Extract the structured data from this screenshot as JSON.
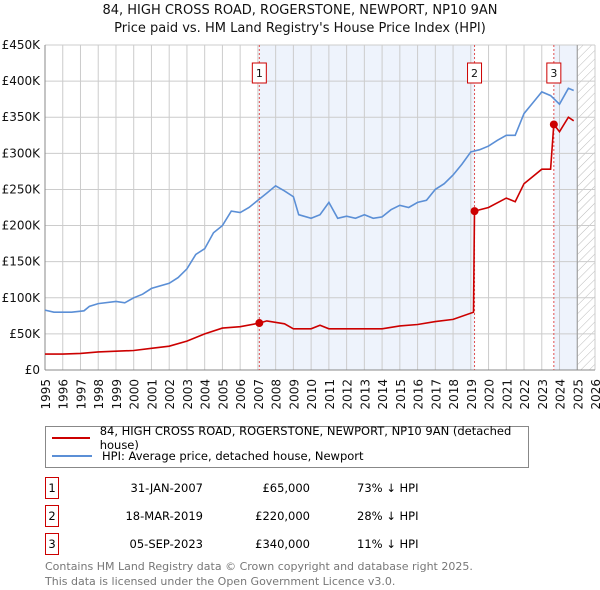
{
  "chart_data": {
    "type": "line",
    "title": "84, HIGH CROSS ROAD, ROGERSTONE, NEWPORT, NP10 9AN",
    "subtitle": "Price paid vs. HM Land Registry's House Price Index (HPI)",
    "xlim": [
      1995,
      2026
    ],
    "ylim": [
      0,
      450000
    ],
    "x_ticks": [
      "1995",
      "1996",
      "1997",
      "1998",
      "1999",
      "2000",
      "2001",
      "2002",
      "2003",
      "2004",
      "2005",
      "2006",
      "2007",
      "2008",
      "2009",
      "2010",
      "2011",
      "2012",
      "2013",
      "2014",
      "2015",
      "2016",
      "2017",
      "2018",
      "2019",
      "2020",
      "2021",
      "2022",
      "2023",
      "2024",
      "2025",
      "2026"
    ],
    "y_ticks": [
      {
        "v": 0,
        "label": "£0"
      },
      {
        "v": 50000,
        "label": "£50K"
      },
      {
        "v": 100000,
        "label": "£100K"
      },
      {
        "v": 150000,
        "label": "£150K"
      },
      {
        "v": 200000,
        "label": "£200K"
      },
      {
        "v": 250000,
        "label": "£250K"
      },
      {
        "v": 300000,
        "label": "£300K"
      },
      {
        "v": 350000,
        "label": "£350K"
      },
      {
        "v": 400000,
        "label": "£400K"
      },
      {
        "v": 450000,
        "label": "£450K"
      }
    ],
    "grid": true,
    "shaded_ranges": [
      [
        2007.08,
        2019.21
      ],
      [
        2023.68,
        2025.0
      ]
    ],
    "forecast_hatch_from": 2025.0,
    "series": [
      {
        "name": "84, HIGH CROSS ROAD, ROGERSTONE, NEWPORT, NP10 9AN (detached house)",
        "color": "#cc0000",
        "x": [
          1995,
          1996,
          1997,
          1998,
          1999,
          2000,
          2001,
          2002,
          2003,
          2004,
          2005,
          2006,
          2007.08,
          2007.5,
          2008.5,
          2009,
          2010,
          2010.5,
          2011,
          2012,
          2013,
          2014,
          2015,
          2016,
          2017,
          2018,
          2019.15,
          2019.21,
          2020,
          2021,
          2021.5,
          2022,
          2023,
          2023.5,
          2023.68,
          2024,
          2024.5,
          2024.8
        ],
        "y": [
          22000,
          22000,
          23000,
          25000,
          26000,
          27000,
          30000,
          33000,
          40000,
          50000,
          58000,
          60000,
          65000,
          68000,
          64000,
          57000,
          57000,
          62000,
          57000,
          57000,
          57000,
          57000,
          61000,
          63000,
          67000,
          70000,
          80000,
          220000,
          225000,
          238000,
          233000,
          258000,
          278000,
          278000,
          340000,
          330000,
          350000,
          345000
        ]
      },
      {
        "name": "HPI: Average price, detached house, Newport",
        "color": "#5b8fd6",
        "x": [
          1995,
          1995.5,
          1996.5,
          1997.2,
          1997.5,
          1998,
          1999,
          1999.5,
          2000,
          2000.5,
          2001,
          2002,
          2002.5,
          2003,
          2003.5,
          2004,
          2004.5,
          2005,
          2005.5,
          2006,
          2006.5,
          2007,
          2007.5,
          2008,
          2008.5,
          2009,
          2009.3,
          2010,
          2010.5,
          2011,
          2011.5,
          2012,
          2012.5,
          2013,
          2013.5,
          2014,
          2014.5,
          2015,
          2015.5,
          2016,
          2016.5,
          2017,
          2017.5,
          2018,
          2018.5,
          2019,
          2019.5,
          2020,
          2020.5,
          2021,
          2021.5,
          2022,
          2022.5,
          2023,
          2023.5,
          2024,
          2024.5,
          2024.8
        ],
        "y": [
          83000,
          80000,
          80000,
          82000,
          88000,
          92000,
          95000,
          93000,
          100000,
          105000,
          113000,
          120000,
          128000,
          140000,
          160000,
          168000,
          190000,
          200000,
          220000,
          218000,
          225000,
          235000,
          245000,
          255000,
          248000,
          240000,
          215000,
          210000,
          215000,
          232000,
          210000,
          213000,
          210000,
          215000,
          210000,
          212000,
          222000,
          228000,
          225000,
          232000,
          235000,
          250000,
          258000,
          270000,
          285000,
          302000,
          305000,
          310000,
          318000,
          325000,
          325000,
          355000,
          370000,
          385000,
          380000,
          368000,
          390000,
          387000
        ]
      }
    ],
    "sales": [
      {
        "id": "1",
        "x": 2007.08,
        "y": 65000
      },
      {
        "id": "2",
        "x": 2019.21,
        "y": 220000
      },
      {
        "id": "3",
        "x": 2023.68,
        "y": 340000
      }
    ]
  },
  "legend": [
    {
      "label": "84, HIGH CROSS ROAD, ROGERSTONE, NEWPORT, NP10 9AN (detached house)",
      "color": "#cc0000"
    },
    {
      "label": "HPI: Average price, detached house, Newport",
      "color": "#5b8fd6"
    }
  ],
  "transactions": [
    {
      "id": "1",
      "date": "31-JAN-2007",
      "price": "£65,000",
      "hpi": "73% ↓ HPI"
    },
    {
      "id": "2",
      "date": "18-MAR-2019",
      "price": "£220,000",
      "hpi": "28% ↓ HPI"
    },
    {
      "id": "3",
      "date": "05-SEP-2023",
      "price": "£340,000",
      "hpi": "11% ↓ HPI"
    }
  ],
  "footer": [
    "Contains HM Land Registry data © Crown copyright and database right 2025.",
    "This data is licensed under the Open Government Licence v3.0."
  ]
}
